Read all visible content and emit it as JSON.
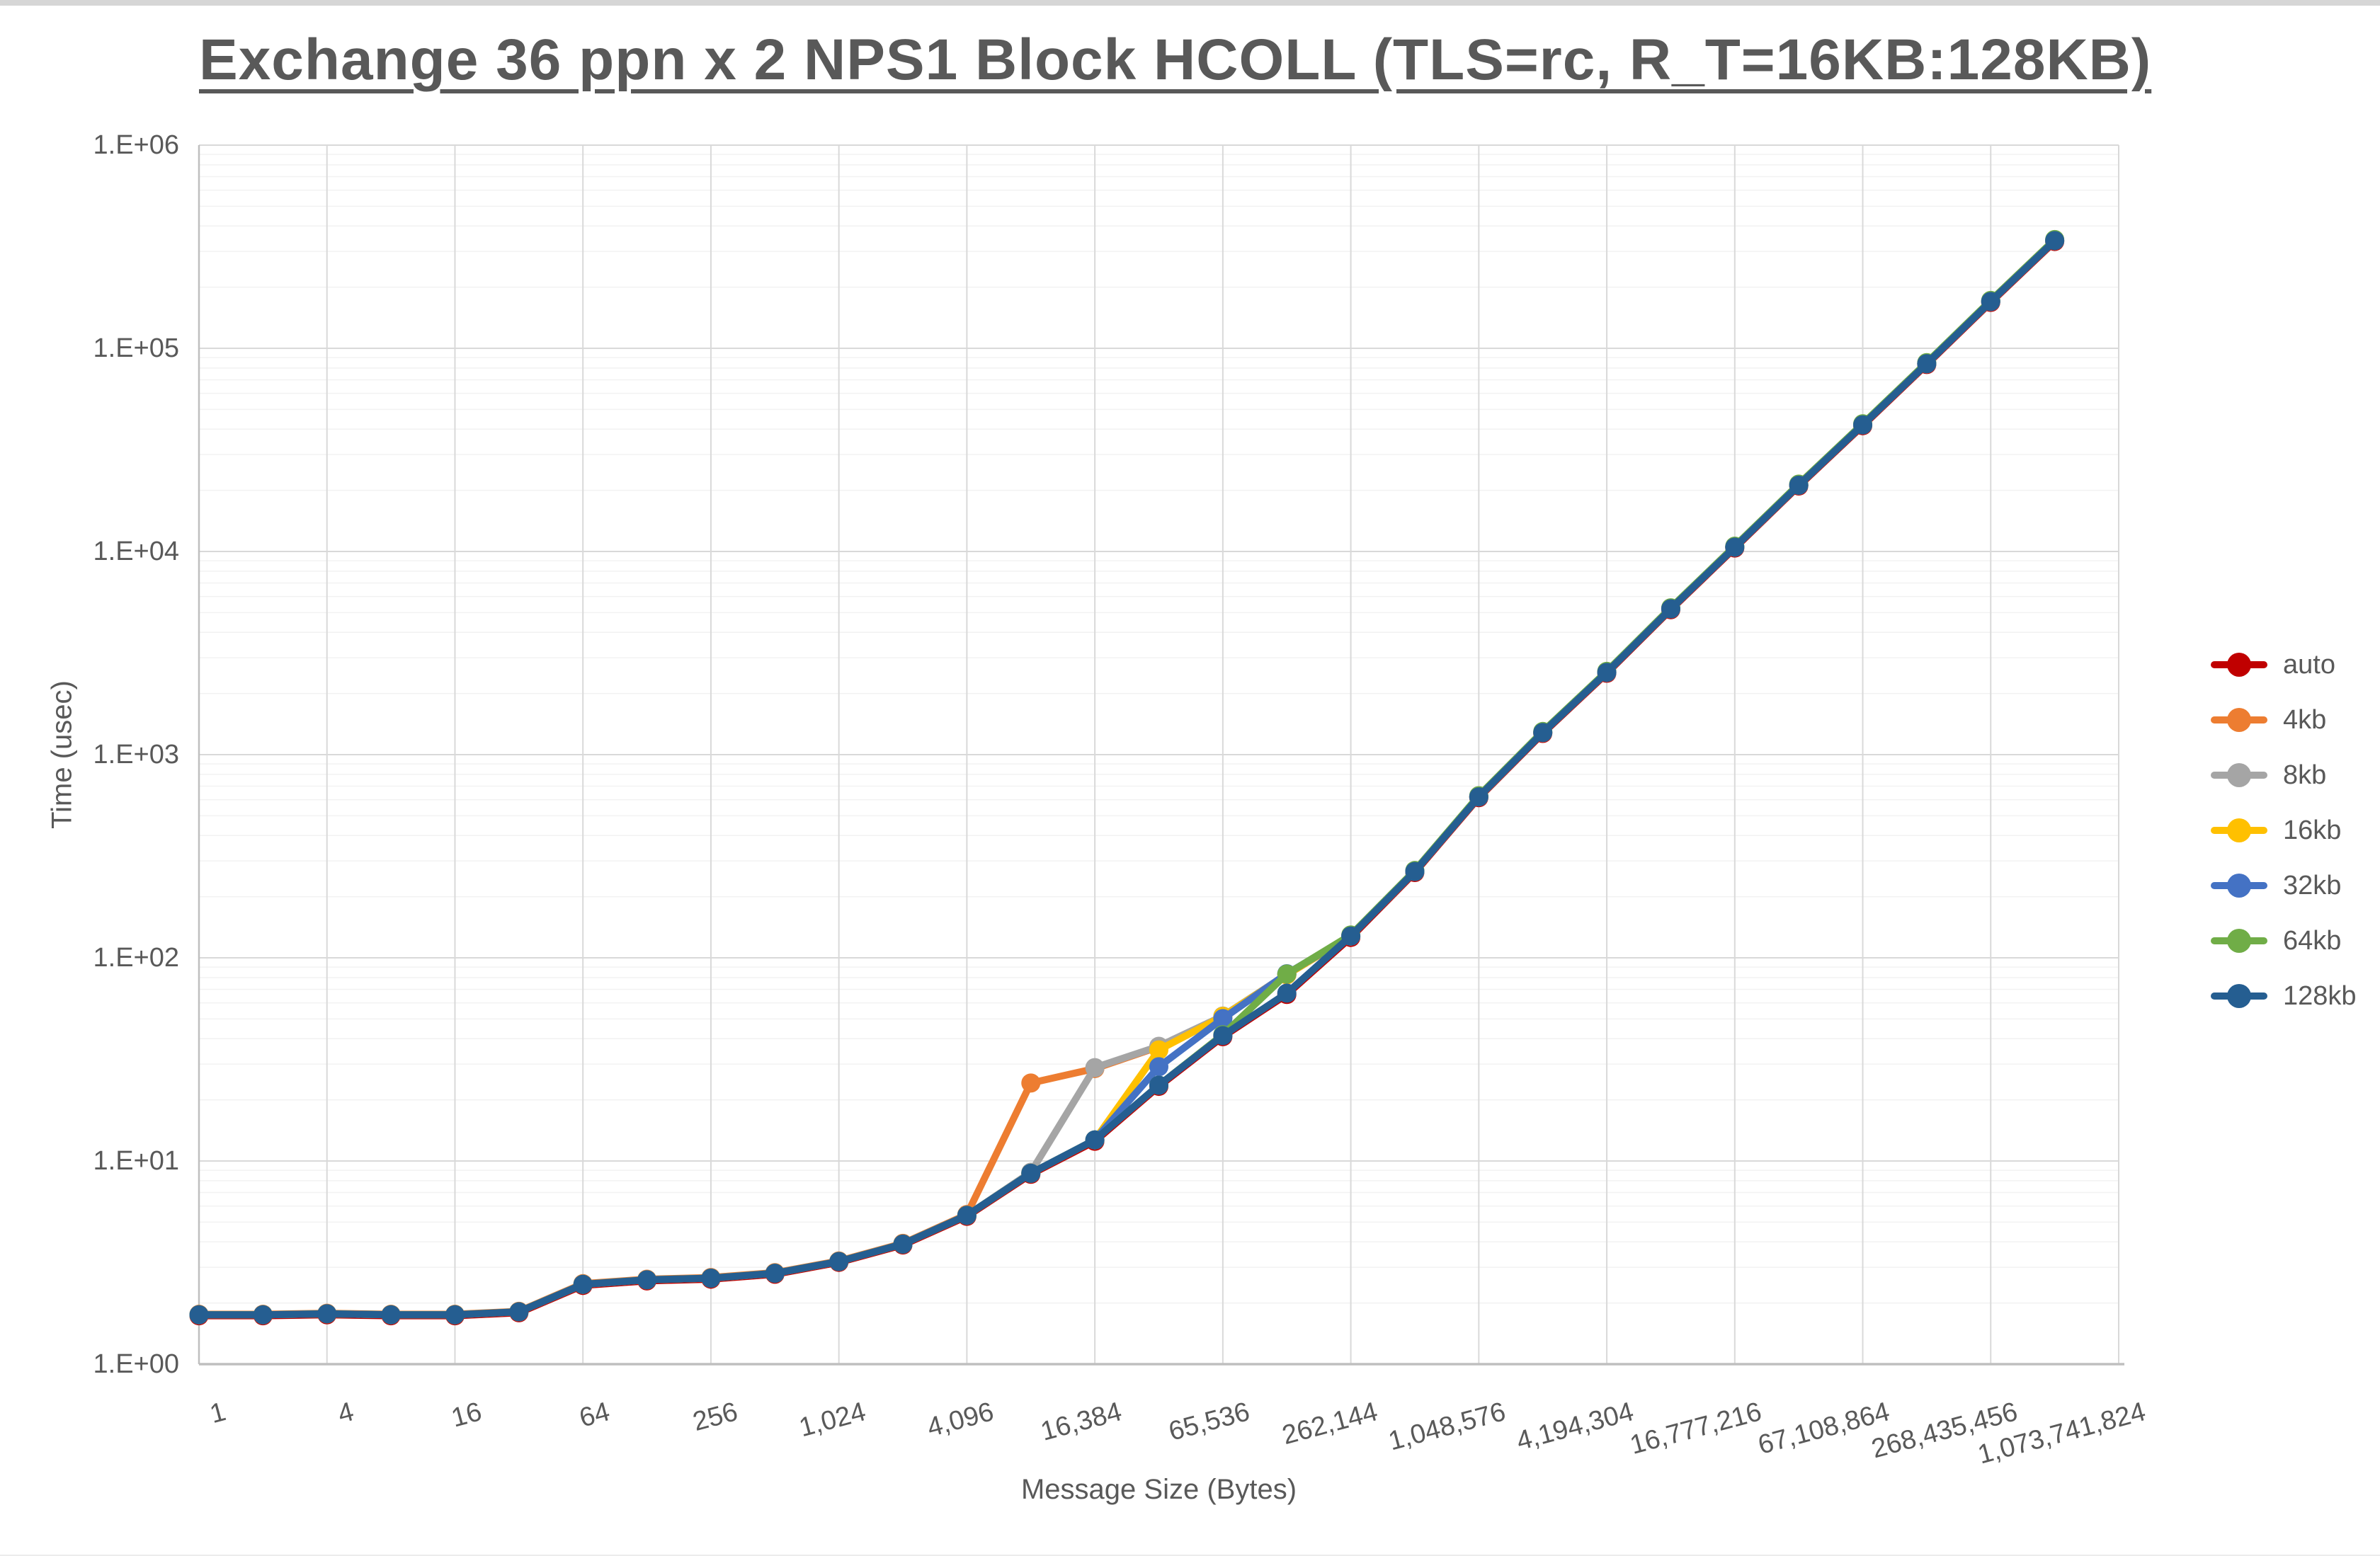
{
  "window": {
    "top_strip_color": "#d6d6d6"
  },
  "chart_data": {
    "type": "line",
    "title": "Exchange 36 ppn x 2 NPS1 Block HCOLL (TLS=rc, R_T=16KB:128KB)",
    "xlabel": "Message Size (Bytes)",
    "ylabel": "Time (usec)",
    "x_scale": "log2",
    "y_scale": "log10",
    "x_range": [
      1,
      1073741824
    ],
    "y_range": [
      1,
      1000000
    ],
    "grid": "major-and-minor",
    "legend_position": "right",
    "y_tick_labels": [
      "1.E+00",
      "1.E+01",
      "1.E+02",
      "1.E+03",
      "1.E+04",
      "1.E+05",
      "1.E+06"
    ],
    "x_tick_values": [
      1,
      4,
      16,
      64,
      256,
      1024,
      4096,
      16384,
      65536,
      262144,
      1048576,
      4194304,
      16777216,
      67108864,
      268435456,
      1073741824
    ],
    "x_tick_labels": [
      "1",
      "4",
      "16",
      "64",
      "256",
      "1,024",
      "4,096",
      "16,384",
      "65,536",
      "262,144",
      "1,048,576",
      "4,194,304",
      "16,777,216",
      "67,108,864",
      "268,435,456",
      "1,073,741,824"
    ],
    "x": [
      1,
      2,
      4,
      8,
      16,
      32,
      64,
      128,
      256,
      512,
      1024,
      2048,
      4096,
      8192,
      16384,
      32768,
      65536,
      131072,
      262144,
      524288,
      1048576,
      2097152,
      4194304,
      8388608,
      16777216,
      33554432,
      67108864,
      134217728,
      268435456,
      536870912
    ],
    "series": [
      {
        "name": "auto",
        "color": "#C00000",
        "values": [
          1.73,
          1.73,
          1.75,
          1.73,
          1.73,
          1.79,
          2.44,
          2.57,
          2.62,
          2.77,
          3.17,
          3.86,
          5.34,
          8.6,
          12.5,
          23.3,
          40.9,
          66,
          126,
          263,
          614,
          1272,
          2515,
          5170,
          10400,
          21000,
          41600,
          83200,
          168300,
          335600
        ]
      },
      {
        "name": "4kb",
        "color": "#ED7D31",
        "values": [
          1.76,
          1.76,
          1.78,
          1.76,
          1.76,
          1.82,
          2.49,
          2.62,
          2.67,
          2.82,
          3.22,
          3.93,
          5.45,
          24.2,
          28.5,
          36.5,
          51,
          82.5,
          128,
          266,
          620,
          1285,
          2540,
          5220,
          10500,
          21200,
          42000,
          84000,
          170000,
          339000
        ]
      },
      {
        "name": "8kb",
        "color": "#A5A5A5",
        "values": [
          1.75,
          1.75,
          1.77,
          1.75,
          1.75,
          1.81,
          2.47,
          2.6,
          2.65,
          2.8,
          3.2,
          3.9,
          5.4,
          8.8,
          28.8,
          36.7,
          51.7,
          83,
          128,
          266,
          620,
          1285,
          2540,
          5220,
          10500,
          21200,
          42000,
          84000,
          170000,
          339000
        ]
      },
      {
        "name": "16kb",
        "color": "#FFC000",
        "values": [
          1.75,
          1.75,
          1.77,
          1.75,
          1.75,
          1.81,
          2.47,
          2.6,
          2.65,
          2.8,
          3.2,
          3.9,
          5.4,
          8.7,
          12.7,
          35.2,
          51.5,
          82.7,
          128,
          266,
          620,
          1285,
          2540,
          5220,
          10500,
          21200,
          42000,
          84000,
          170000,
          339000
        ]
      },
      {
        "name": "32kb",
        "color": "#4472C4",
        "values": [
          1.75,
          1.75,
          1.77,
          1.75,
          1.75,
          1.81,
          2.47,
          2.6,
          2.65,
          2.8,
          3.2,
          3.9,
          5.4,
          8.7,
          12.7,
          29.1,
          50.2,
          83.5,
          128,
          266,
          620,
          1285,
          2540,
          5220,
          10500,
          21200,
          42000,
          84000,
          170000,
          339000
        ]
      },
      {
        "name": "64kb",
        "color": "#70AD47",
        "values": [
          1.75,
          1.75,
          1.77,
          1.75,
          1.75,
          1.81,
          2.47,
          2.6,
          2.65,
          2.8,
          3.2,
          3.9,
          5.4,
          8.7,
          12.7,
          23.6,
          41.8,
          83.2,
          129.5,
          269,
          628,
          1300,
          2570,
          5280,
          10620,
          21450,
          42500,
          85000,
          172000,
          343000
        ]
      },
      {
        "name": "128kb",
        "color": "#255E91",
        "values": [
          1.75,
          1.75,
          1.77,
          1.75,
          1.75,
          1.81,
          2.47,
          2.6,
          2.65,
          2.8,
          3.2,
          3.9,
          5.4,
          8.7,
          12.7,
          23.6,
          41.4,
          67,
          128,
          266,
          620,
          1285,
          2540,
          5220,
          10500,
          21200,
          42000,
          84000,
          170000,
          339000
        ]
      }
    ],
    "colors": {
      "grid_major": "#d9d9d9",
      "grid_minor": "#f2f2f2",
      "axis_line": "#bfbfbf",
      "tick_text": "#595959",
      "title_text": "#595959"
    }
  }
}
